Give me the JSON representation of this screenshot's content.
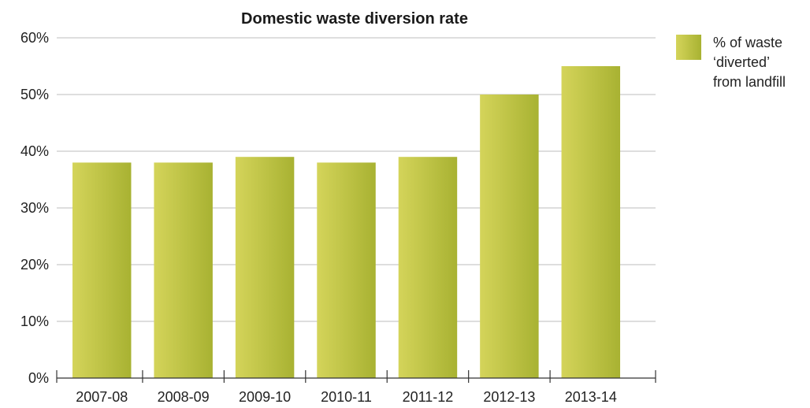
{
  "chart_data": {
    "type": "bar",
    "title": "Domestic waste diversion rate",
    "categories": [
      "2007-08",
      "2008-09",
      "2009-10",
      "2010-11",
      "2011-12",
      "2012-13",
      "2013-14"
    ],
    "series": [
      {
        "name": "% of waste ‘diverted’ from landfill",
        "values": [
          38,
          38,
          39,
          38,
          39,
          50,
          55
        ]
      }
    ],
    "legend_lines": [
      "% of waste",
      "‘diverted’",
      "from landfill"
    ],
    "ylim": [
      0,
      60
    ],
    "yticks": [
      "0%",
      "10%",
      "20%",
      "30%",
      "40%",
      "50%",
      "60%"
    ],
    "grid": true,
    "legend_position": "top-right",
    "colors": {
      "bar_light": "#d4d45a",
      "bar_dark": "#a8b232",
      "grid": "#bdbdbd"
    }
  }
}
